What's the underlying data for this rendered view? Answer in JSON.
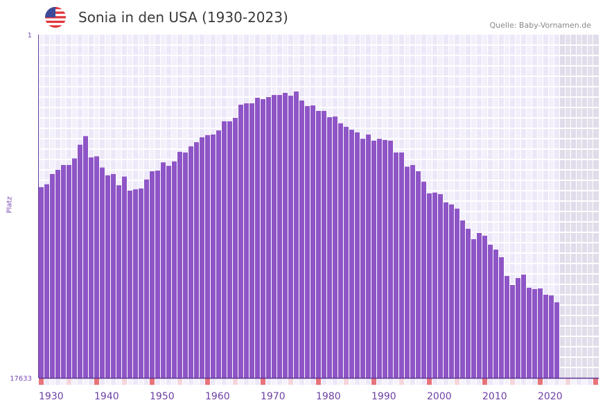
{
  "header": {
    "title": "Sonia in den USA (1930-2023)",
    "source": "Quelle: Baby-Vornamen.de",
    "flag_icon": "us-flag-icon"
  },
  "chart_data": {
    "type": "bar",
    "title": "Sonia in den USA (1930-2023)",
    "xlabel": "",
    "ylabel": "Platz",
    "y_scale": "log",
    "y_inverted": true,
    "ylim": [
      1,
      17633
    ],
    "yticks": [
      "1",
      "17633"
    ],
    "x_range": [
      1930,
      2030
    ],
    "xticks": [
      "1930",
      "1940",
      "1950",
      "1960",
      "1970",
      "1980",
      "1990",
      "2000",
      "2010",
      "2020"
    ],
    "bar_color": "#8e55c6",
    "years": [
      1930,
      1931,
      1932,
      1933,
      1934,
      1935,
      1936,
      1937,
      1938,
      1939,
      1940,
      1941,
      1942,
      1943,
      1944,
      1945,
      1946,
      1947,
      1948,
      1949,
      1950,
      1951,
      1952,
      1953,
      1954,
      1955,
      1956,
      1957,
      1958,
      1959,
      1960,
      1961,
      1962,
      1963,
      1964,
      1965,
      1966,
      1967,
      1968,
      1969,
      1970,
      1971,
      1972,
      1973,
      1974,
      1975,
      1976,
      1977,
      1978,
      1979,
      1980,
      1981,
      1982,
      1983,
      1984,
      1985,
      1986,
      1987,
      1988,
      1989,
      1990,
      1991,
      1992,
      1993,
      1994,
      1995,
      1996,
      1997,
      1998,
      1999,
      2000,
      2001,
      2002,
      2003,
      2004,
      2005,
      2006,
      2007,
      2008,
      2009,
      2010,
      2011,
      2012,
      2013,
      2014,
      2015,
      2016,
      2017,
      2018,
      2019,
      2020,
      2021,
      2022,
      2023
    ],
    "values": [
      77,
      71,
      53,
      47,
      41,
      41,
      34,
      23,
      18,
      33,
      32,
      44,
      55,
      53,
      73,
      57,
      85,
      82,
      80,
      62,
      49,
      48,
      38,
      42,
      37,
      28.2,
      28.7,
      24.1,
      21.4,
      18.6,
      17.5,
      17.2,
      15.3,
      11.8,
      11.8,
      10.7,
      7.35,
      7.07,
      7.07,
      6.03,
      6.28,
      5.92,
      5.58,
      5.58,
      5.25,
      5.69,
      5.05,
      6.53,
      7.65,
      7.5,
      8.78,
      8.78,
      10.5,
      10.3,
      12.5,
      13.8,
      15.0,
      16.2,
      19.4,
      17.2,
      20.5,
      19.4,
      20.1,
      20.5,
      28.7,
      28.7,
      43,
      41,
      49,
      66,
      92,
      90,
      94,
      119,
      126,
      142,
      199,
      252,
      339,
      284,
      307,
      397,
      456,
      567,
      967,
      1249,
      1026,
      930,
      1352,
      1407,
      1380,
      1647,
      1680,
      2048
    ]
  }
}
